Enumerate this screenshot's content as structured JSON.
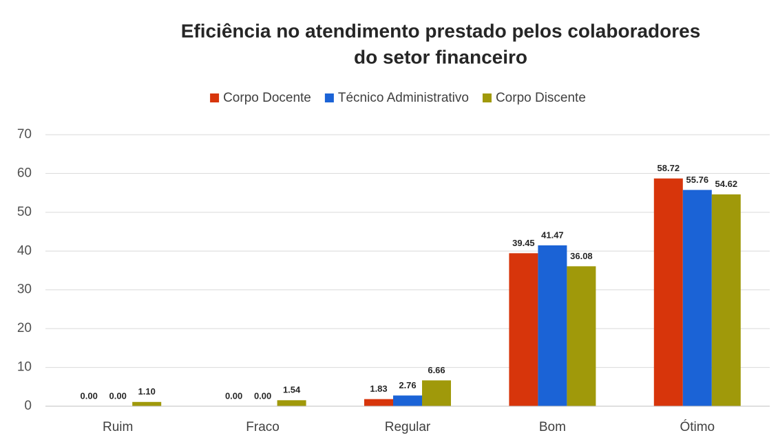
{
  "chart_data": {
    "type": "bar",
    "title": [
      "Eficiência no atendimento prestado pelos colaboradores",
      "do setor financeiro"
    ],
    "categories": [
      "Ruim",
      "Fraco",
      "Regular",
      "Bom",
      "Ótimo"
    ],
    "series": [
      {
        "name": "Corpo Docente",
        "color": "#d7350b",
        "values": [
          0,
          0,
          1.83,
          39.45,
          58.72
        ],
        "value_labels": [
          "0.00",
          "0.00",
          "1.83",
          "39.45",
          "58.72"
        ]
      },
      {
        "name": "Técnico Administrativo",
        "color": "#1b63d6",
        "values": [
          0,
          0,
          2.76,
          41.47,
          55.76
        ],
        "value_labels": [
          "0.00",
          "0.00",
          "2.76",
          "41.47",
          "55.76"
        ]
      },
      {
        "name": "Corpo Discente",
        "color": "#a0990a",
        "values": [
          1.1,
          1.54,
          6.66,
          36.08,
          54.62
        ],
        "value_labels": [
          "1.10",
          "1.54",
          "6.66",
          "36.08",
          "54.62"
        ]
      }
    ],
    "ylim": [
      0,
      70
    ],
    "yticks": [
      0,
      10,
      20,
      30,
      40,
      50,
      60,
      70
    ],
    "grid": true,
    "legend": "top"
  }
}
